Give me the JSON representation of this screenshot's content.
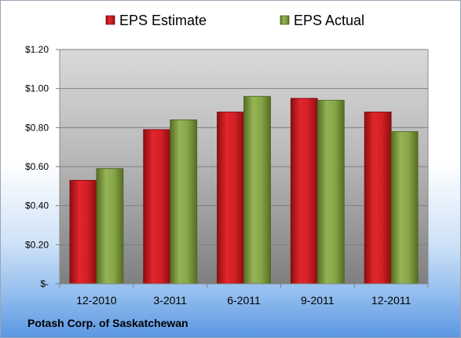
{
  "chart_data": {
    "type": "bar",
    "title": "",
    "xlabel": "",
    "ylabel": "",
    "categories": [
      "12-2010",
      "3-2011",
      "6-2011",
      "9-2011",
      "12-2011"
    ],
    "series": [
      {
        "name": "EPS Estimate",
        "values": [
          0.53,
          0.79,
          0.88,
          0.95,
          0.88
        ],
        "color": "#c4161c"
      },
      {
        "name": "EPS Actual",
        "values": [
          0.59,
          0.84,
          0.96,
          0.94,
          0.78
        ],
        "color": "#7a9b3a"
      }
    ],
    "ylim": [
      0,
      1.2
    ],
    "yticks": [
      0,
      0.2,
      0.4,
      0.6,
      0.8,
      1.0,
      1.2
    ],
    "ytick_labels": [
      "$-",
      "$0.20",
      "$0.40",
      "$0.60",
      "$0.80",
      "$1.00",
      "$1.20"
    ],
    "grid": true,
    "legend_position": "top"
  },
  "footer": {
    "company": "Potash Corp. of Saskatchewan"
  }
}
